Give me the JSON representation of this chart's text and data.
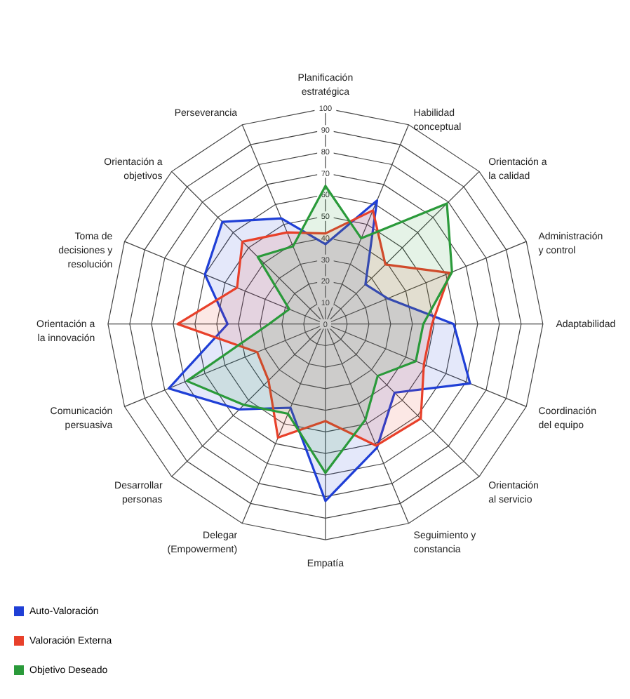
{
  "chart_data": {
    "type": "radar",
    "categories": [
      "Planificación estratégica",
      "Habilidad conceptual",
      "Orientación a la calidad",
      "Administración y control",
      "Adaptabilidad",
      "Coordinación del equipo",
      "Orientación al servicio",
      "Seguimiento y constancia",
      "Empatía",
      "Delegar (Empowerment)",
      "Desarrollar personas",
      "Comunicación persuasiva",
      "Orientación a la innovación",
      "Toma de decisiones y resolución",
      "Orientación a objetivos",
      "Perseverancia"
    ],
    "series": [
      {
        "name": "Auto-Valoración",
        "color": "#1f3fd6",
        "values": [
          37,
          62,
          26,
          31,
          59,
          72,
          45,
          62,
          82,
          42,
          56,
          78,
          45,
          60,
          67,
          53
        ]
      },
      {
        "name": "Valoración Externa",
        "color": "#e8402a",
        "values": [
          42,
          57,
          39,
          62,
          49,
          49,
          62,
          61,
          45,
          57,
          37,
          34,
          68,
          44,
          54,
          46
        ]
      },
      {
        "name": "Objetivo Deseado",
        "color": "#2a9a3a",
        "values": [
          64,
          43,
          79,
          63,
          45,
          45,
          34,
          48,
          69,
          45,
          53,
          69,
          26,
          18,
          44,
          39
        ]
      }
    ],
    "ylim": [
      0,
      100
    ],
    "yticks": [
      0,
      10,
      20,
      30,
      40,
      50,
      60,
      70,
      80,
      90,
      100
    ],
    "grid": true,
    "legend": "bottom left",
    "marker": "none"
  }
}
